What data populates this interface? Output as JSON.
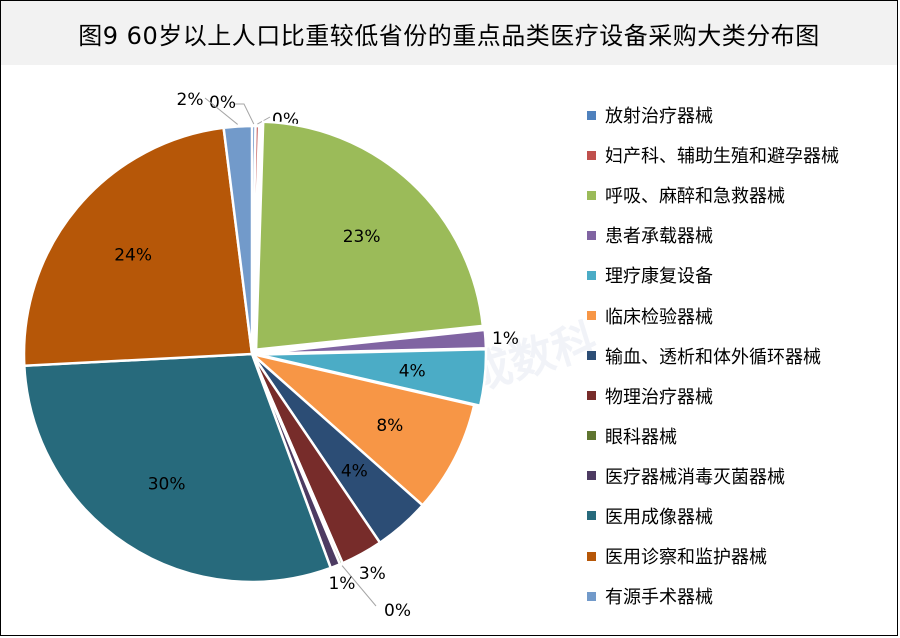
{
  "title": "图9 60岁以上人口比重较低省份的重点品类医疗设备采购大类分布图",
  "watermark": "jarchain.众成数科",
  "chart_data": {
    "type": "pie",
    "categories": [
      "放射治疗器械",
      "妇产科、辅助生殖和避孕器械",
      "呼吸、麻醉和急救器械",
      "患者承载器械",
      "理疗康复设备",
      "临床检验器械",
      "输血、透析和体外循环器械",
      "物理治疗器械",
      "眼科器械",
      "医疗器械消毒灭菌器械",
      "医用成像器械",
      "医用诊察和监护器械",
      "有源手术器械"
    ],
    "values": [
      0.25,
      0.25,
      23,
      1.3,
      4,
      8,
      4,
      3,
      0.2,
      0.7,
      30,
      24,
      2
    ],
    "data_labels": [
      "0%",
      "0%",
      "23%",
      "1%",
      "4%",
      "8%",
      "4%",
      "3%",
      "0%",
      "1%",
      "30%",
      "24%",
      "2%"
    ],
    "colors": [
      "#4f81bd",
      "#c0504d",
      "#9bbb59",
      "#8064a2",
      "#4bacc6",
      "#f79646",
      "#2c4d75",
      "#772c2a",
      "#5f7530",
      "#4d3b62",
      "#276a7c",
      "#b65708",
      "#729aca"
    ],
    "legend_position": "right"
  }
}
